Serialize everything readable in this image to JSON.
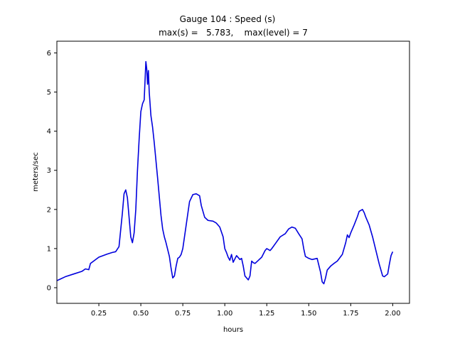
{
  "chart_data": {
    "type": "line",
    "title": "Gauge 104 : Speed (s)",
    "subtitle": "max(s) =   5.783,    max(level) = 7",
    "xlabel": "hours",
    "ylabel": "meters/sec",
    "xlim": [
      0.0,
      2.1
    ],
    "ylim": [
      -0.4,
      6.3
    ],
    "xticks": [
      0.25,
      0.5,
      0.75,
      1.0,
      1.25,
      1.5,
      1.75,
      2.0
    ],
    "xtick_labels": [
      "0.25",
      "0.50",
      "0.75",
      "1.00",
      "1.25",
      "1.50",
      "1.75",
      "2.00"
    ],
    "yticks": [
      0,
      1,
      2,
      3,
      4,
      5,
      6
    ],
    "ytick_labels": [
      "0",
      "1",
      "2",
      "3",
      "4",
      "5",
      "6"
    ],
    "grid": false,
    "line_color": "#0000dd",
    "series": [
      {
        "x": [
          0.0,
          0.02,
          0.05,
          0.1,
          0.15,
          0.17,
          0.19,
          0.2,
          0.25,
          0.3,
          0.33,
          0.35,
          0.37,
          0.39,
          0.4,
          0.41,
          0.42,
          0.43,
          0.44,
          0.45,
          0.46,
          0.47,
          0.48,
          0.49,
          0.5,
          0.51,
          0.52,
          0.53,
          0.535,
          0.54,
          0.545,
          0.55,
          0.56,
          0.57,
          0.58,
          0.6,
          0.62,
          0.63,
          0.64,
          0.65,
          0.67,
          0.68,
          0.69,
          0.7,
          0.71,
          0.72,
          0.73,
          0.74,
          0.75,
          0.77,
          0.79,
          0.81,
          0.83,
          0.85,
          0.86,
          0.87,
          0.88,
          0.9,
          0.93,
          0.95,
          0.97,
          0.99,
          1.0,
          1.01,
          1.02,
          1.03,
          1.04,
          1.05,
          1.07,
          1.09,
          1.1,
          1.11,
          1.12,
          1.14,
          1.15,
          1.16,
          1.17,
          1.18,
          1.2,
          1.22,
          1.24,
          1.25,
          1.27,
          1.28,
          1.3,
          1.33,
          1.36,
          1.38,
          1.4,
          1.42,
          1.44,
          1.46,
          1.47,
          1.48,
          1.5,
          1.52,
          1.55,
          1.57,
          1.58,
          1.59,
          1.6,
          1.61,
          1.63,
          1.65,
          1.67,
          1.7,
          1.72,
          1.73,
          1.74,
          1.75,
          1.77,
          1.79,
          1.8,
          1.82,
          1.83,
          1.84,
          1.86,
          1.88,
          1.9,
          1.92,
          1.94,
          1.95,
          1.97,
          1.98,
          1.99,
          2.0
        ],
        "y": [
          0.18,
          0.22,
          0.28,
          0.35,
          0.42,
          0.48,
          0.46,
          0.62,
          0.78,
          0.86,
          0.9,
          0.92,
          1.05,
          1.9,
          2.4,
          2.5,
          2.3,
          1.8,
          1.3,
          1.15,
          1.4,
          2.0,
          3.0,
          3.8,
          4.5,
          4.7,
          4.8,
          5.78,
          5.6,
          5.2,
          5.55,
          5.0,
          4.4,
          4.1,
          3.7,
          2.8,
          1.85,
          1.5,
          1.3,
          1.15,
          0.8,
          0.5,
          0.25,
          0.3,
          0.55,
          0.75,
          0.78,
          0.85,
          1.0,
          1.6,
          2.2,
          2.38,
          2.4,
          2.35,
          2.1,
          1.95,
          1.8,
          1.72,
          1.7,
          1.65,
          1.55,
          1.3,
          1.0,
          0.9,
          0.78,
          0.7,
          0.85,
          0.65,
          0.82,
          0.72,
          0.75,
          0.55,
          0.3,
          0.2,
          0.3,
          0.68,
          0.64,
          0.62,
          0.7,
          0.78,
          0.95,
          1.0,
          0.95,
          1.0,
          1.12,
          1.3,
          1.38,
          1.5,
          1.55,
          1.52,
          1.38,
          1.25,
          1.0,
          0.8,
          0.75,
          0.72,
          0.75,
          0.4,
          0.15,
          0.1,
          0.25,
          0.45,
          0.55,
          0.62,
          0.68,
          0.85,
          1.15,
          1.35,
          1.28,
          1.4,
          1.6,
          1.82,
          1.95,
          2.0,
          1.92,
          1.8,
          1.6,
          1.3,
          0.95,
          0.6,
          0.3,
          0.28,
          0.35,
          0.6,
          0.82,
          0.92
        ]
      }
    ]
  }
}
